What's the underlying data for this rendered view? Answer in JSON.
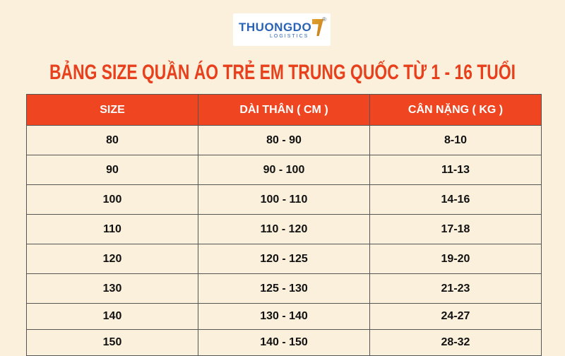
{
  "logo": {
    "name": "THUONGDO",
    "sub": "LOGISTICS",
    "mark": "®"
  },
  "title": "BẢNG SIZE QUẦN ÁO TRẺ EM TRUNG QUỐC TỪ 1 - 16 TUỔI",
  "table": {
    "headers": [
      "SIZE",
      "DÀI THÂN ( CM )",
      "CÂN NẶNG ( KG )"
    ],
    "rows": [
      [
        "80",
        "80 - 90",
        "8-10"
      ],
      [
        "90",
        "90 - 100",
        "11-13"
      ],
      [
        "100",
        "100 - 110",
        "14-16"
      ],
      [
        "110",
        "110 - 120",
        "17-18"
      ],
      [
        "120",
        "120 - 125",
        "19-20"
      ],
      [
        "130",
        "125 - 130",
        "21-23"
      ],
      [
        "140",
        "130 - 140",
        "24-27"
      ],
      [
        "150",
        "140 - 150",
        "28-32"
      ]
    ]
  }
}
